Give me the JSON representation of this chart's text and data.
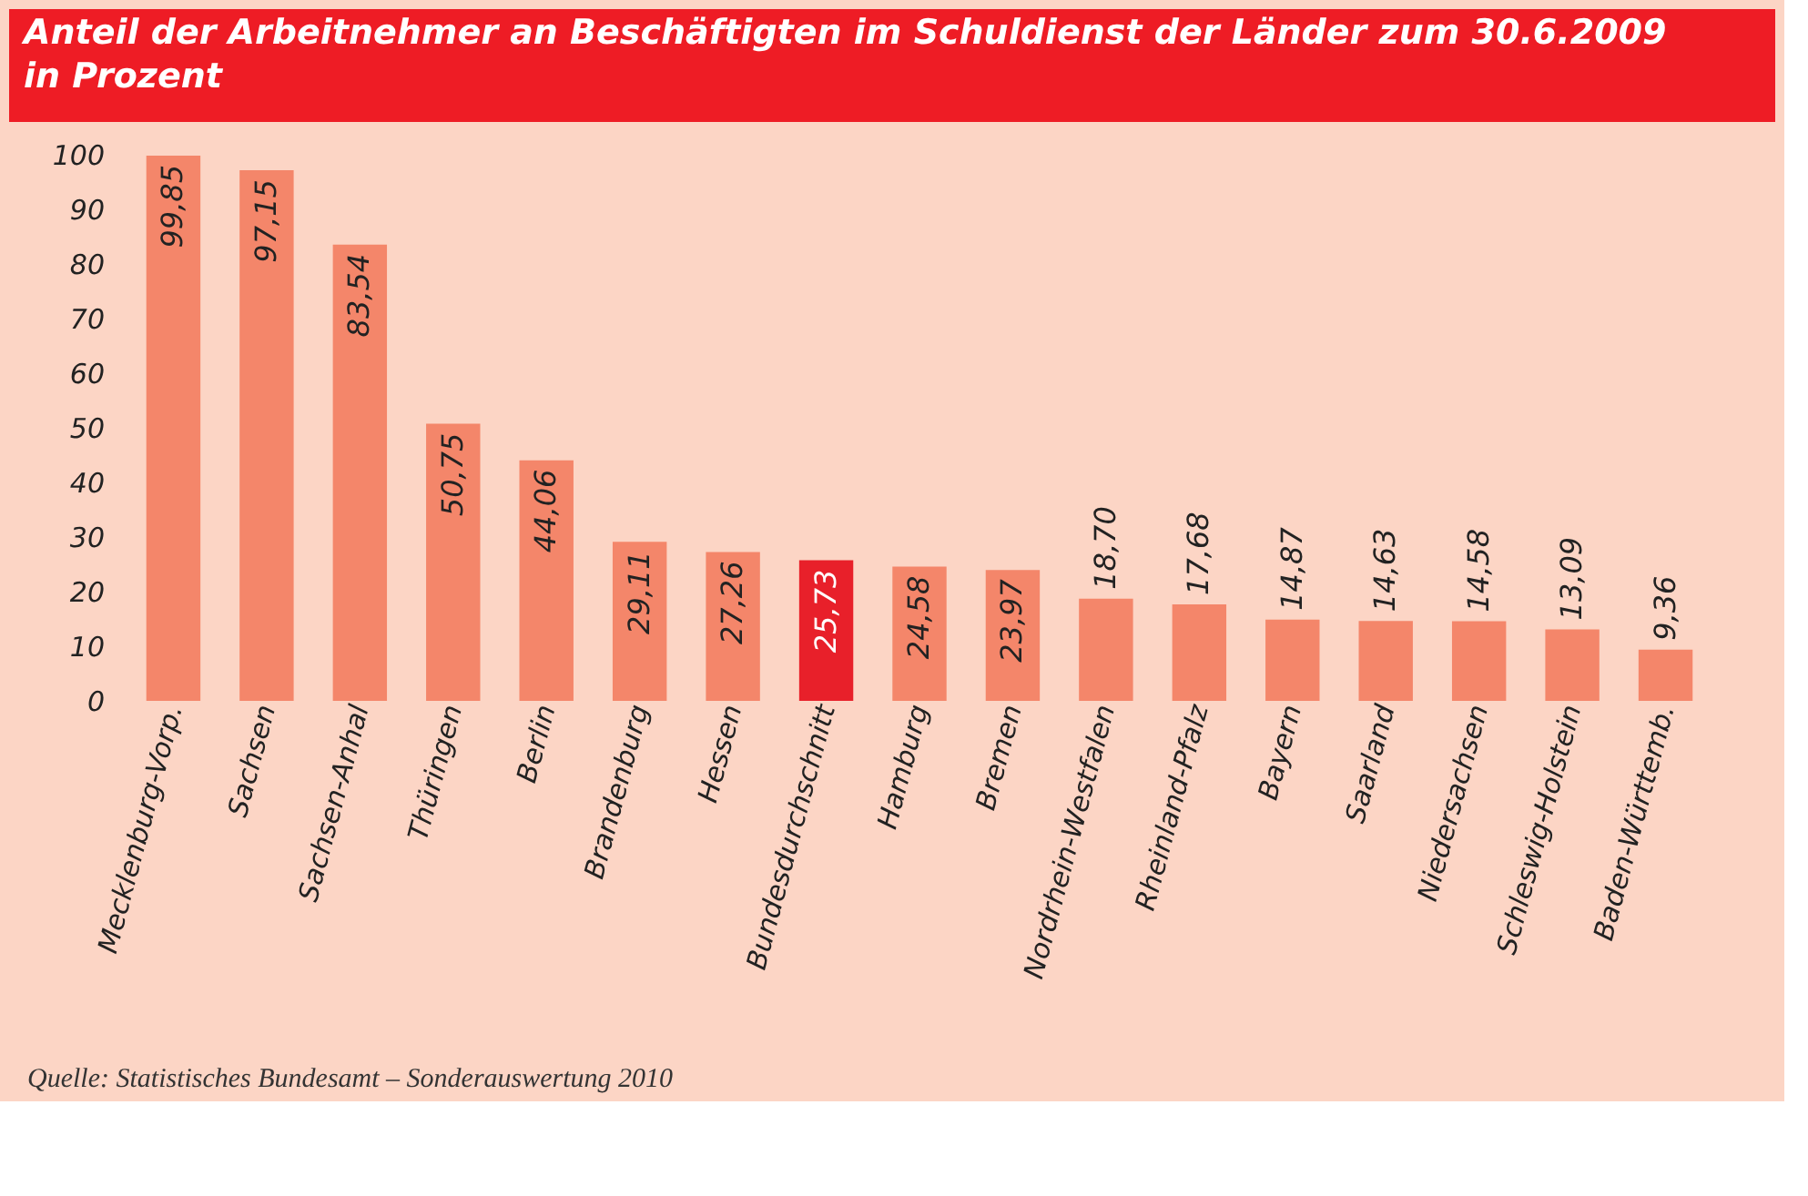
{
  "chart_data": {
    "type": "bar",
    "title": "Anteil der Arbeitnehmer an Beschäftigten im Schuldienst der Länder zum 30.6.2009 in Prozent",
    "categories": [
      "Mecklenburg-Vorp.",
      "Sachsen",
      "Sachsen-Anhal",
      "Thüringen",
      "Berlin",
      "Brandenburg",
      "Hessen",
      "Bundesdurchschnitt",
      "Hamburg",
      "Bremen",
      "Nordrhein-Westfalen",
      "Rheinland-Pfalz",
      "Bayern",
      "Saarland",
      "Niedersachsen",
      "Schleswig-Holstein",
      "Baden-Württemb."
    ],
    "values": [
      99.85,
      97.15,
      83.54,
      50.75,
      44.06,
      29.11,
      27.26,
      25.73,
      24.58,
      23.97,
      18.7,
      17.68,
      14.87,
      14.63,
      14.58,
      13.09,
      9.36
    ],
    "value_labels": [
      "99,85",
      "97,15",
      "83,54",
      "50,75",
      "44,06",
      "29,11",
      "27,26",
      "25,73",
      "24,58",
      "23,97",
      "18,70",
      "17,68",
      "14,87",
      "14,63",
      "14,58",
      "13,09",
      "9,36"
    ],
    "colors": [
      "#f4866a",
      "#f4866a",
      "#f4866a",
      "#f4866a",
      "#f4866a",
      "#f4866a",
      "#f4866a",
      "#e8202a",
      "#f4866a",
      "#f4866a",
      "#f4866a",
      "#f4866a",
      "#f4866a",
      "#f4866a",
      "#f4866a",
      "#f4866a",
      "#f4866a"
    ],
    "ylim": [
      0,
      100
    ],
    "yticks": [
      0,
      10,
      20,
      30,
      40,
      50,
      60,
      70,
      80,
      90,
      100
    ],
    "grid": false,
    "annotations": [
      "Quelle: Statistisches Bundesamt – Sonderauswertung 2010"
    ]
  }
}
